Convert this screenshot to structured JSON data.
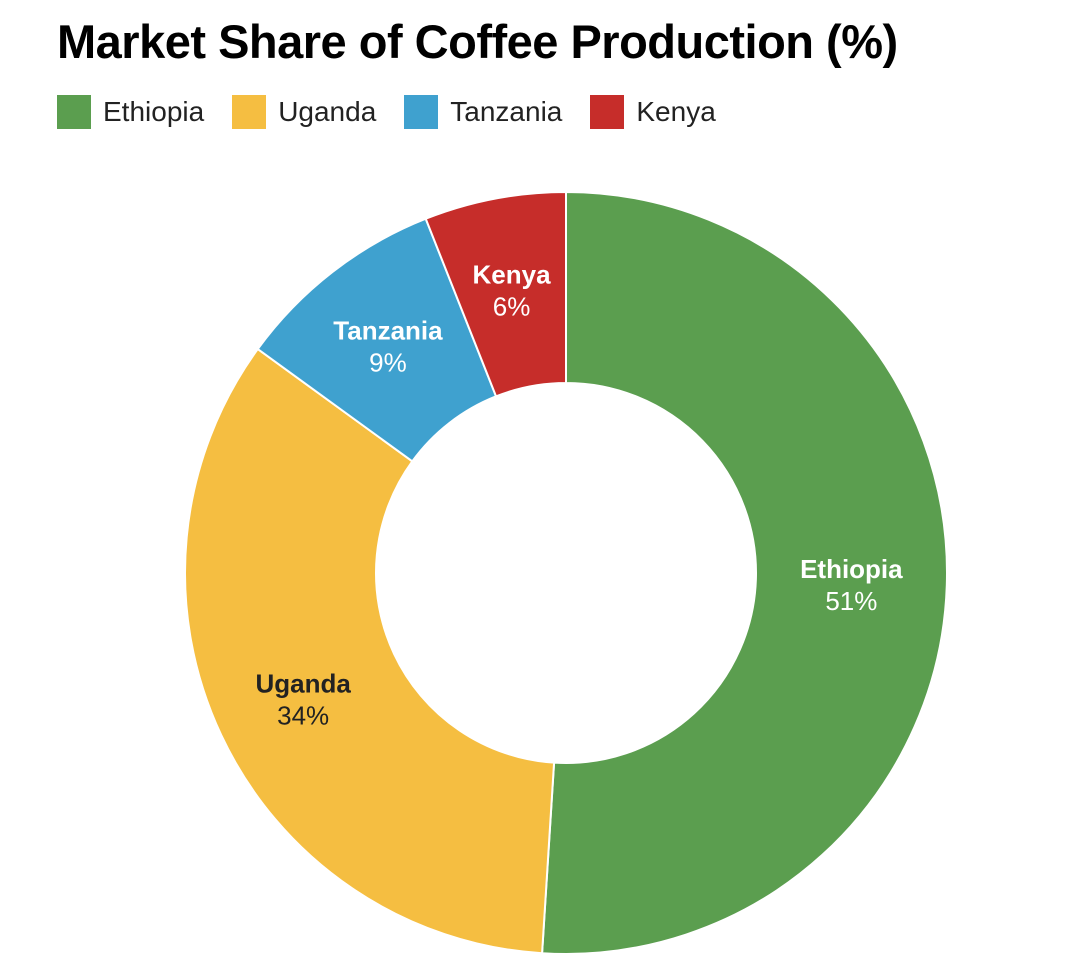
{
  "chart_data": {
    "type": "pie",
    "variant": "donut",
    "title": "Market Share of Coffee Production (%)",
    "legend_position": "top-left",
    "slices": [
      {
        "label": "Ethiopia",
        "value": 51,
        "value_label": "51%",
        "color": "#5B9E4F",
        "text_color": "#ffffff"
      },
      {
        "label": "Uganda",
        "value": 34,
        "value_label": "34%",
        "color": "#F5BE41",
        "text_color": "#222222"
      },
      {
        "label": "Tanzania",
        "value": 9,
        "value_label": "9%",
        "color": "#3FA1CF",
        "text_color": "#ffffff"
      },
      {
        "label": "Kenya",
        "value": 6,
        "value_label": "6%",
        "color": "#C62D2A",
        "text_color": "#ffffff"
      }
    ]
  }
}
